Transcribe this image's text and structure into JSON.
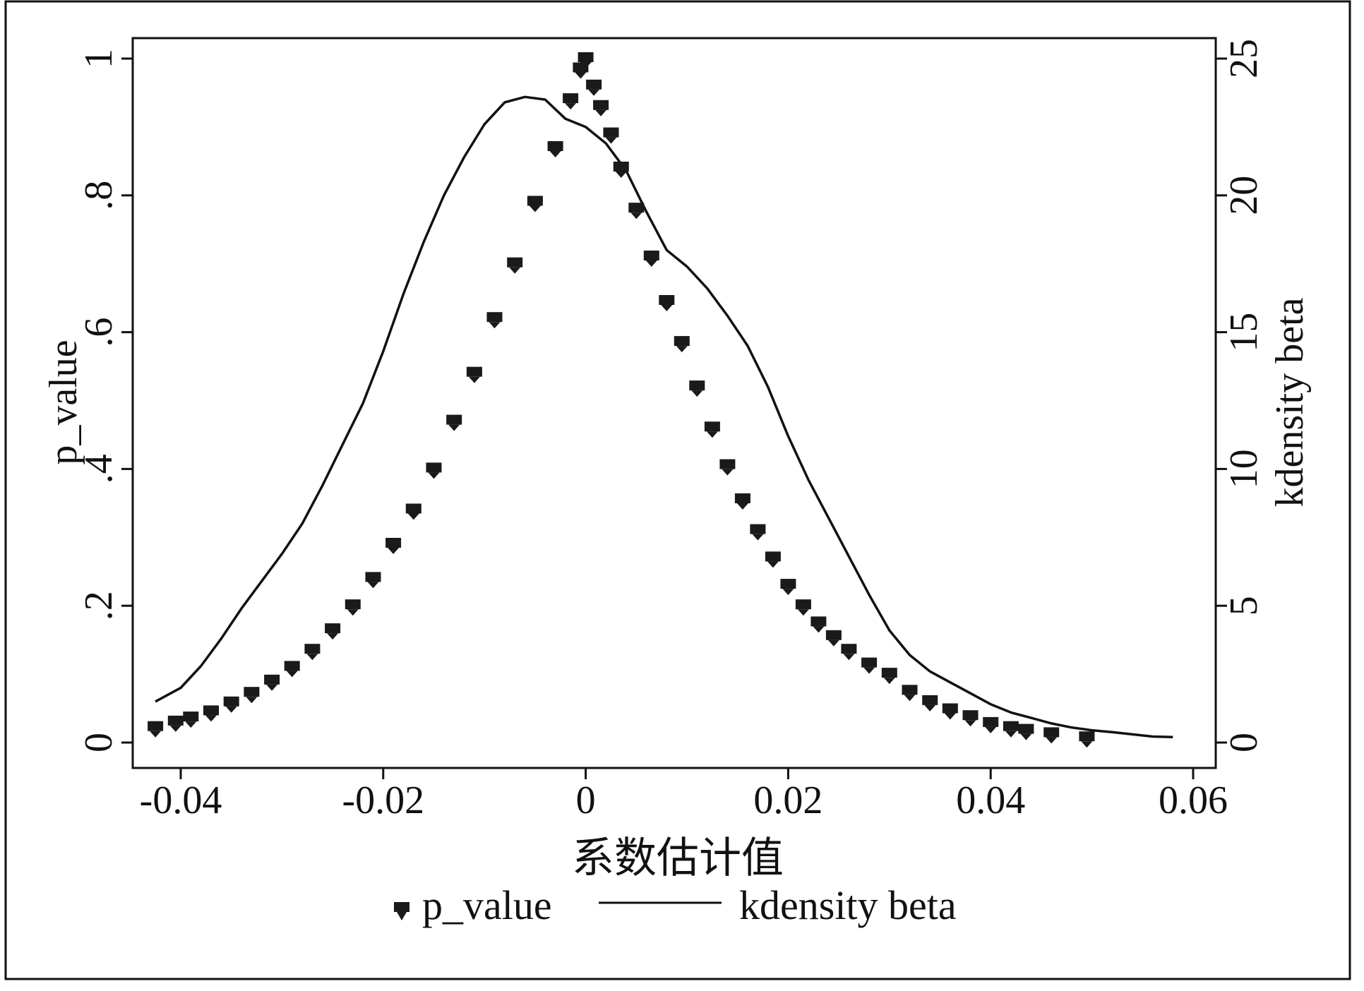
{
  "chart_data": {
    "type": "scatter",
    "xlabel": "系数估计值",
    "ylabel_left": "p_value",
    "ylabel_right": "kdensity beta",
    "xlim": [
      -0.043,
      0.058
    ],
    "ylim_left": [
      0,
      1
    ],
    "ylim_right": [
      0,
      25
    ],
    "x_ticks": [
      -0.04,
      -0.02,
      0,
      0.02,
      0.04,
      0.06
    ],
    "x_tick_labels": [
      "-0.04",
      "-0.02",
      "0",
      "0.02",
      "0.04",
      "0.06"
    ],
    "y_left_ticks": [
      0,
      0.2,
      0.4,
      0.6,
      0.8,
      1
    ],
    "y_left_tick_labels": [
      "0",
      ".2",
      ".4",
      ".6",
      ".8",
      "1"
    ],
    "y_right_ticks": [
      0,
      5,
      10,
      15,
      20,
      25
    ],
    "y_right_tick_labels": [
      "0",
      "5",
      "10",
      "15",
      "20",
      "25"
    ],
    "grid": false,
    "legend_position": "bottom",
    "series": [
      {
        "name": "p_value",
        "kind": "scatter",
        "axis": "left",
        "color": "#1a1a1a",
        "points": [
          [
            -0.0425,
            0.022
          ],
          [
            -0.0405,
            0.03
          ],
          [
            -0.039,
            0.036
          ],
          [
            -0.037,
            0.045
          ],
          [
            -0.035,
            0.058
          ],
          [
            -0.033,
            0.072
          ],
          [
            -0.031,
            0.09
          ],
          [
            -0.029,
            0.11
          ],
          [
            -0.027,
            0.135
          ],
          [
            -0.025,
            0.165
          ],
          [
            -0.023,
            0.2
          ],
          [
            -0.021,
            0.24
          ],
          [
            -0.019,
            0.29
          ],
          [
            -0.017,
            0.34
          ],
          [
            -0.015,
            0.4
          ],
          [
            -0.013,
            0.47
          ],
          [
            -0.011,
            0.54
          ],
          [
            -0.009,
            0.62
          ],
          [
            -0.007,
            0.7
          ],
          [
            -0.005,
            0.79
          ],
          [
            -0.003,
            0.87
          ],
          [
            -0.0015,
            0.94
          ],
          [
            -0.0005,
            0.985
          ],
          [
            0.0,
            1.0
          ],
          [
            0.0008,
            0.96
          ],
          [
            0.0015,
            0.93
          ],
          [
            0.0025,
            0.89
          ],
          [
            0.0035,
            0.84
          ],
          [
            0.005,
            0.78
          ],
          [
            0.0065,
            0.71
          ],
          [
            0.008,
            0.645
          ],
          [
            0.0095,
            0.585
          ],
          [
            0.011,
            0.52
          ],
          [
            0.0125,
            0.46
          ],
          [
            0.014,
            0.405
          ],
          [
            0.0155,
            0.355
          ],
          [
            0.017,
            0.31
          ],
          [
            0.0185,
            0.27
          ],
          [
            0.02,
            0.23
          ],
          [
            0.0215,
            0.2
          ],
          [
            0.023,
            0.175
          ],
          [
            0.0245,
            0.155
          ],
          [
            0.026,
            0.135
          ],
          [
            0.028,
            0.115
          ],
          [
            0.03,
            0.1
          ],
          [
            0.032,
            0.075
          ],
          [
            0.034,
            0.06
          ],
          [
            0.036,
            0.048
          ],
          [
            0.038,
            0.038
          ],
          [
            0.04,
            0.028
          ],
          [
            0.042,
            0.022
          ],
          [
            0.0435,
            0.018
          ],
          [
            0.046,
            0.013
          ],
          [
            0.0495,
            0.007
          ]
        ]
      },
      {
        "name": "kdensity beta",
        "kind": "line",
        "axis": "right",
        "color": "#111111",
        "points": [
          [
            -0.0425,
            1.5
          ],
          [
            -0.04,
            2.0
          ],
          [
            -0.038,
            2.8
          ],
          [
            -0.036,
            3.8
          ],
          [
            -0.034,
            4.9
          ],
          [
            -0.032,
            5.9
          ],
          [
            -0.03,
            6.9
          ],
          [
            -0.028,
            8.0
          ],
          [
            -0.026,
            9.4
          ],
          [
            -0.024,
            10.9
          ],
          [
            -0.022,
            12.4
          ],
          [
            -0.02,
            14.3
          ],
          [
            -0.018,
            16.4
          ],
          [
            -0.016,
            18.3
          ],
          [
            -0.014,
            20.0
          ],
          [
            -0.012,
            21.4
          ],
          [
            -0.01,
            22.6
          ],
          [
            -0.008,
            23.4
          ],
          [
            -0.006,
            23.6
          ],
          [
            -0.004,
            23.5
          ],
          [
            -0.002,
            22.8
          ],
          [
            0.0,
            22.5
          ],
          [
            0.002,
            21.9
          ],
          [
            0.004,
            20.9
          ],
          [
            0.006,
            19.4
          ],
          [
            0.008,
            18.0
          ],
          [
            0.01,
            17.4
          ],
          [
            0.012,
            16.6
          ],
          [
            0.014,
            15.6
          ],
          [
            0.016,
            14.5
          ],
          [
            0.018,
            13.0
          ],
          [
            0.02,
            11.2
          ],
          [
            0.022,
            9.6
          ],
          [
            0.024,
            8.2
          ],
          [
            0.026,
            6.8
          ],
          [
            0.028,
            5.4
          ],
          [
            0.03,
            4.1
          ],
          [
            0.032,
            3.2
          ],
          [
            0.034,
            2.6
          ],
          [
            0.036,
            2.2
          ],
          [
            0.038,
            1.8
          ],
          [
            0.04,
            1.4
          ],
          [
            0.042,
            1.1
          ],
          [
            0.044,
            0.9
          ],
          [
            0.046,
            0.7
          ],
          [
            0.048,
            0.55
          ],
          [
            0.05,
            0.45
          ],
          [
            0.052,
            0.38
          ],
          [
            0.054,
            0.3
          ],
          [
            0.056,
            0.22
          ],
          [
            0.058,
            0.2
          ]
        ]
      }
    ]
  }
}
